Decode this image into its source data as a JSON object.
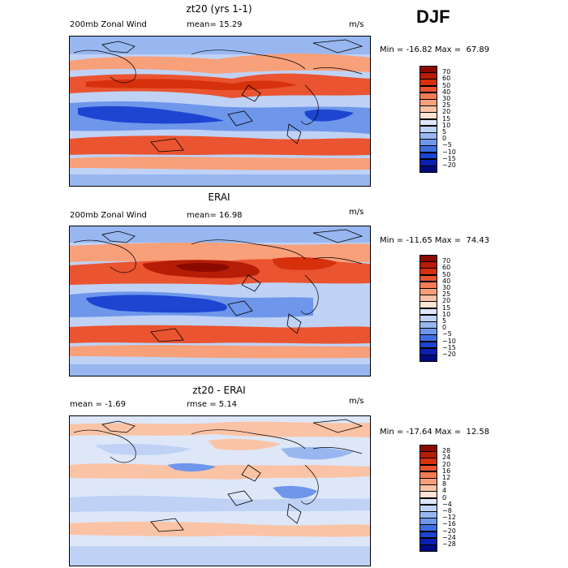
{
  "season": "DJF",
  "units": "m/s",
  "panels": [
    {
      "title": "zt20 (yrs 1-1)",
      "left_label": "200mb Zonal Wind",
      "mean_label": "mean=  15.29",
      "minmax": "Min = -16.82 Max =  67.89",
      "colorbar_labels": [
        "70",
        "60",
        "50",
        "40",
        "30",
        "25",
        "20",
        "15",
        "10",
        "5",
        "0",
        "−5",
        "−10",
        "−15",
        "−20"
      ]
    },
    {
      "title": "ERAI",
      "left_label": "200mb Zonal Wind",
      "mean_label": "mean=  16.98",
      "minmax": "Min = -11.65 Max =  74.43",
      "colorbar_labels": [
        "70",
        "60",
        "50",
        "40",
        "30",
        "25",
        "20",
        "15",
        "10",
        "5",
        "0",
        "−5",
        "−10",
        "−15",
        "−20"
      ]
    },
    {
      "title": "zt20 - ERAI",
      "left_label": "mean =  -1.69",
      "mean_label": "rmse =   5.14",
      "minmax": "Min = -17.64 Max =  12.58",
      "colorbar_labels": [
        "28",
        "24",
        "20",
        "16",
        "12",
        "8",
        "4",
        "0",
        "−4",
        "−8",
        "−12",
        "−16",
        "−20",
        "−24",
        "−28"
      ]
    }
  ],
  "colors": {
    "colorbar_abs": [
      "#8b0a00",
      "#b51d06",
      "#d6300d",
      "#ea5430",
      "#f57c55",
      "#f8a07a",
      "#fbc3a6",
      "#fde4d4",
      "#dde7f8",
      "#bfd2f6",
      "#98b7f0",
      "#6e96ea",
      "#3f6ee0",
      "#1d45d2",
      "#0b1fb0",
      "#020a80"
    ],
    "colorbar_diff": [
      "#8b0a00",
      "#b51d06",
      "#d6300d",
      "#ea5430",
      "#f57c55",
      "#f8a07a",
      "#fbc3a6",
      "#fde4d4",
      "#dde7f8",
      "#bfd2f6",
      "#98b7f0",
      "#6e96ea",
      "#3f6ee0",
      "#1d45d2",
      "#0b1fb0",
      "#020a80"
    ]
  }
}
